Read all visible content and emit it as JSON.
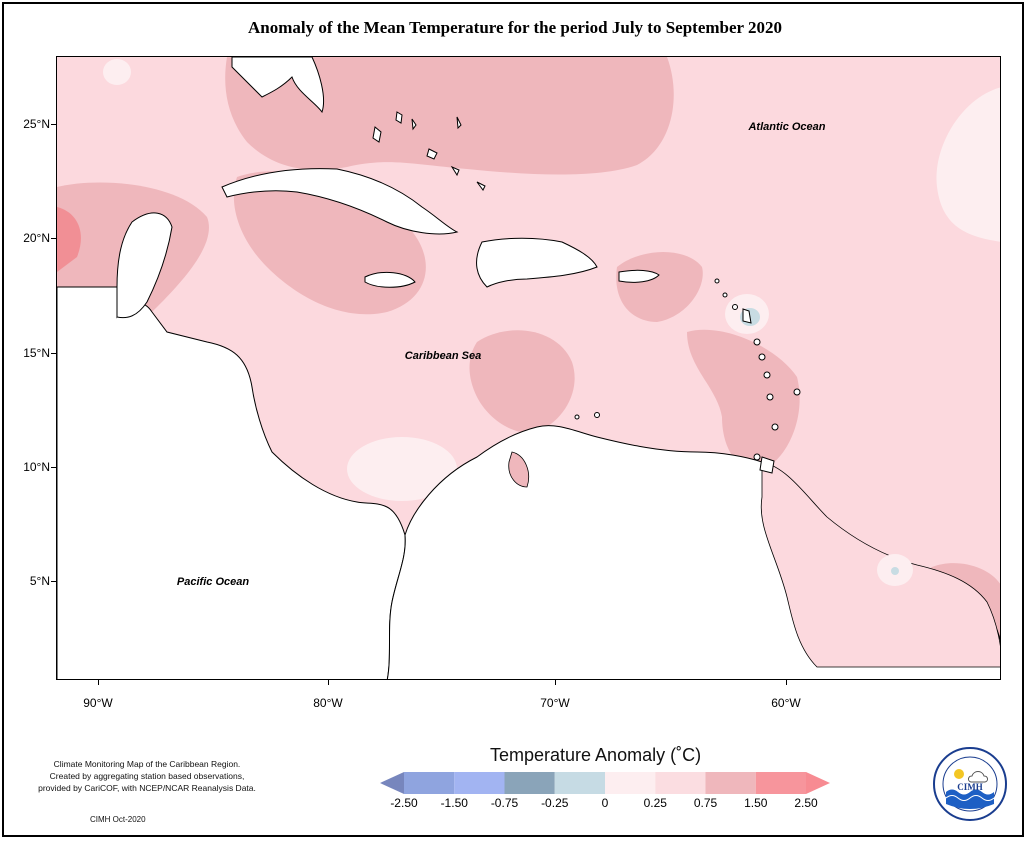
{
  "title": "Anomaly of the Mean Temperature for the period July to September 2020",
  "map": {
    "regions": {
      "atlantic": "Atlantic Ocean",
      "caribbean": "Caribbean Sea",
      "pacific": "Pacific Ocean"
    },
    "lat_labels": [
      "25°N",
      "20°N",
      "15°N",
      "10°N",
      "5°N"
    ],
    "lon_labels": [
      "90°W",
      "80°W",
      "70°W",
      "60°W"
    ],
    "colors": {
      "land": "#ffffff",
      "anom_0_025": "#fdeef0",
      "anom_025_075": "#fcd9de",
      "anom_075_150": "#efb7bc",
      "anom_150_250": "#f18f95",
      "anom_neg": "#c8dce3"
    }
  },
  "legend": {
    "title": "Temperature Anomaly (˚C)",
    "labels": [
      "-2.50",
      "-1.50",
      "-0.75",
      "-0.25",
      "0",
      "0.25",
      "0.75",
      "1.50",
      "2.50"
    ],
    "colors": [
      "#7786bd",
      "#8fa4df",
      "#a2b4f2",
      "#8aa4b9",
      "#c6dbe4",
      "#fdeef0",
      "#fbdde1",
      "#efb7bc",
      "#f7959c",
      "#f78b92"
    ]
  },
  "credits": {
    "lines": [
      "Climate Monitoring Map of the Caribbean Region.",
      "Created by aggregating station based observations,",
      "provided by CariCOF, with NCEP/NCAR Reanalysis Data."
    ],
    "footer": "CIMH Oct-2020"
  },
  "logo": {
    "text": "CIMH"
  }
}
